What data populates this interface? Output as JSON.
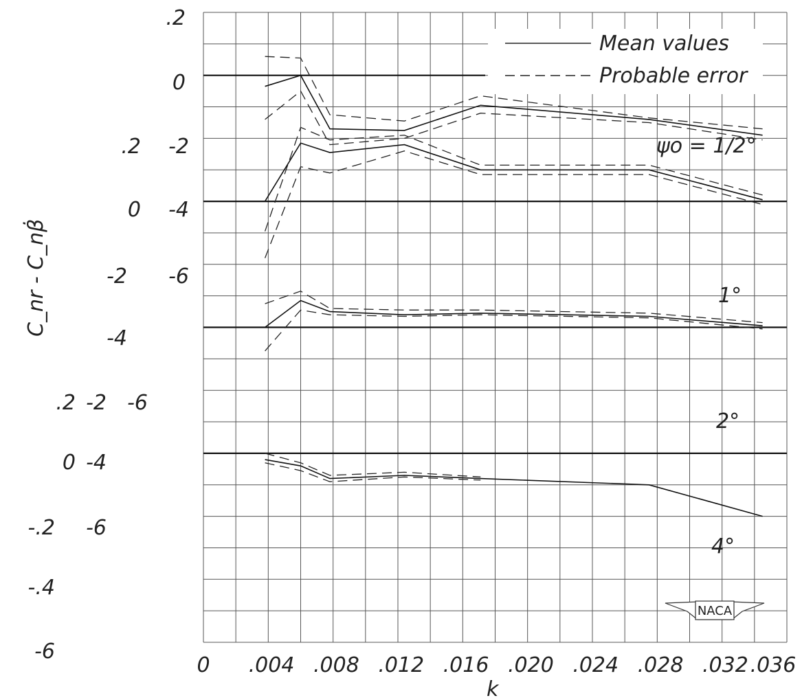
{
  "chart_data": {
    "type": "line",
    "xlabel": "k",
    "ylabel": "C_nr - C_nβ̇",
    "x_ticks": [
      "0",
      ".004",
      ".008",
      ".012",
      ".016",
      ".020",
      ".024",
      ".028",
      ".032",
      ".036"
    ],
    "xlim": [
      0,
      0.036
    ],
    "legend": {
      "position": "top-right",
      "entries": [
        {
          "style": "solid",
          "label": "Mean values"
        },
        {
          "style": "dashed",
          "label": "Probable error"
        }
      ]
    },
    "y_tick_columns": [
      {
        "ticks": [
          ".2",
          "0",
          ".2",
          "0",
          ".2",
          "0",
          "-.2",
          "-.4",
          "-6"
        ]
      },
      {
        "ticks": [
          "-2",
          "-4",
          "-2",
          "-4",
          "-2",
          "-4",
          "-6"
        ]
      },
      {
        "ticks": [
          "-6",
          "-6"
        ]
      }
    ],
    "panels": [
      {
        "label": "ψo = 1/2°",
        "mean": [
          [
            0.0038,
            -0.35
          ],
          [
            0.006,
            0.0
          ],
          [
            0.0078,
            -1.7
          ],
          [
            0.0124,
            -1.75
          ],
          [
            0.0171,
            -0.95
          ],
          [
            0.0275,
            -1.4
          ],
          [
            0.0345,
            -1.9
          ]
        ],
        "upper": [
          [
            0.0038,
            0.6
          ],
          [
            0.006,
            0.55
          ],
          [
            0.0078,
            -1.25
          ],
          [
            0.0124,
            -1.45
          ],
          [
            0.0171,
            -0.65
          ],
          [
            0.0275,
            -1.35
          ],
          [
            0.0345,
            -1.7
          ]
        ],
        "lower": [
          [
            0.0038,
            -1.4
          ],
          [
            0.006,
            -0.5
          ],
          [
            0.0078,
            -2.2
          ],
          [
            0.0124,
            -2.0
          ],
          [
            0.0171,
            -1.2
          ],
          [
            0.0275,
            -1.5
          ],
          [
            0.0345,
            -2.05
          ]
        ]
      },
      {
        "label": "1°",
        "mean": [
          [
            0.0038,
            0.0
          ],
          [
            0.006,
            1.85
          ],
          [
            0.0078,
            1.55
          ],
          [
            0.0124,
            1.8
          ],
          [
            0.0171,
            1.0
          ],
          [
            0.0275,
            1.0
          ],
          [
            0.0345,
            0.05
          ]
        ],
        "upper": [
          [
            0.0038,
            -0.95
          ],
          [
            0.006,
            2.35
          ],
          [
            0.0078,
            1.95
          ],
          [
            0.0124,
            2.1
          ],
          [
            0.0171,
            1.15
          ],
          [
            0.0275,
            1.15
          ],
          [
            0.0345,
            0.2
          ]
        ],
        "lower": [
          [
            0.0038,
            -1.8
          ],
          [
            0.006,
            1.1
          ],
          [
            0.0078,
            0.9
          ],
          [
            0.0124,
            1.6
          ],
          [
            0.0171,
            0.85
          ],
          [
            0.0275,
            0.85
          ],
          [
            0.0345,
            -0.1
          ]
        ]
      },
      {
        "label": "2°",
        "mean": [
          [
            0.0038,
            0.0
          ],
          [
            0.006,
            0.85
          ],
          [
            0.0078,
            0.5
          ],
          [
            0.0124,
            0.4
          ],
          [
            0.0171,
            0.45
          ],
          [
            0.0275,
            0.35
          ],
          [
            0.0345,
            0.05
          ]
        ],
        "upper": [
          [
            0.0038,
            0.75
          ],
          [
            0.006,
            1.15
          ],
          [
            0.0078,
            0.6
          ],
          [
            0.0124,
            0.55
          ],
          [
            0.0171,
            0.55
          ],
          [
            0.0275,
            0.45
          ],
          [
            0.0345,
            0.15
          ]
        ],
        "lower": [
          [
            0.0038,
            -0.75
          ],
          [
            0.006,
            0.55
          ],
          [
            0.0078,
            0.4
          ],
          [
            0.0124,
            0.35
          ],
          [
            0.0171,
            0.4
          ],
          [
            0.0275,
            0.3
          ],
          [
            0.0345,
            -0.05
          ]
        ]
      },
      {
        "label": "4°",
        "mean": [
          [
            0.0038,
            -0.2
          ],
          [
            0.006,
            -0.4
          ],
          [
            0.0078,
            -0.8
          ],
          [
            0.0124,
            -0.7
          ],
          [
            0.0171,
            -0.8
          ],
          [
            0.0275,
            -1.0
          ],
          [
            0.0345,
            -2.0
          ]
        ],
        "upper": [
          [
            0.0038,
            0.0
          ],
          [
            0.006,
            -0.3
          ],
          [
            0.0078,
            -0.7
          ],
          [
            0.0124,
            -0.6
          ],
          [
            0.0171,
            -0.75
          ]
        ],
        "lower": [
          [
            0.0038,
            -0.3
          ],
          [
            0.006,
            -0.55
          ],
          [
            0.0078,
            -0.9
          ],
          [
            0.0124,
            -0.75
          ],
          [
            0.0171,
            -0.85
          ]
        ]
      }
    ]
  },
  "badge": {
    "text": "NACA"
  }
}
